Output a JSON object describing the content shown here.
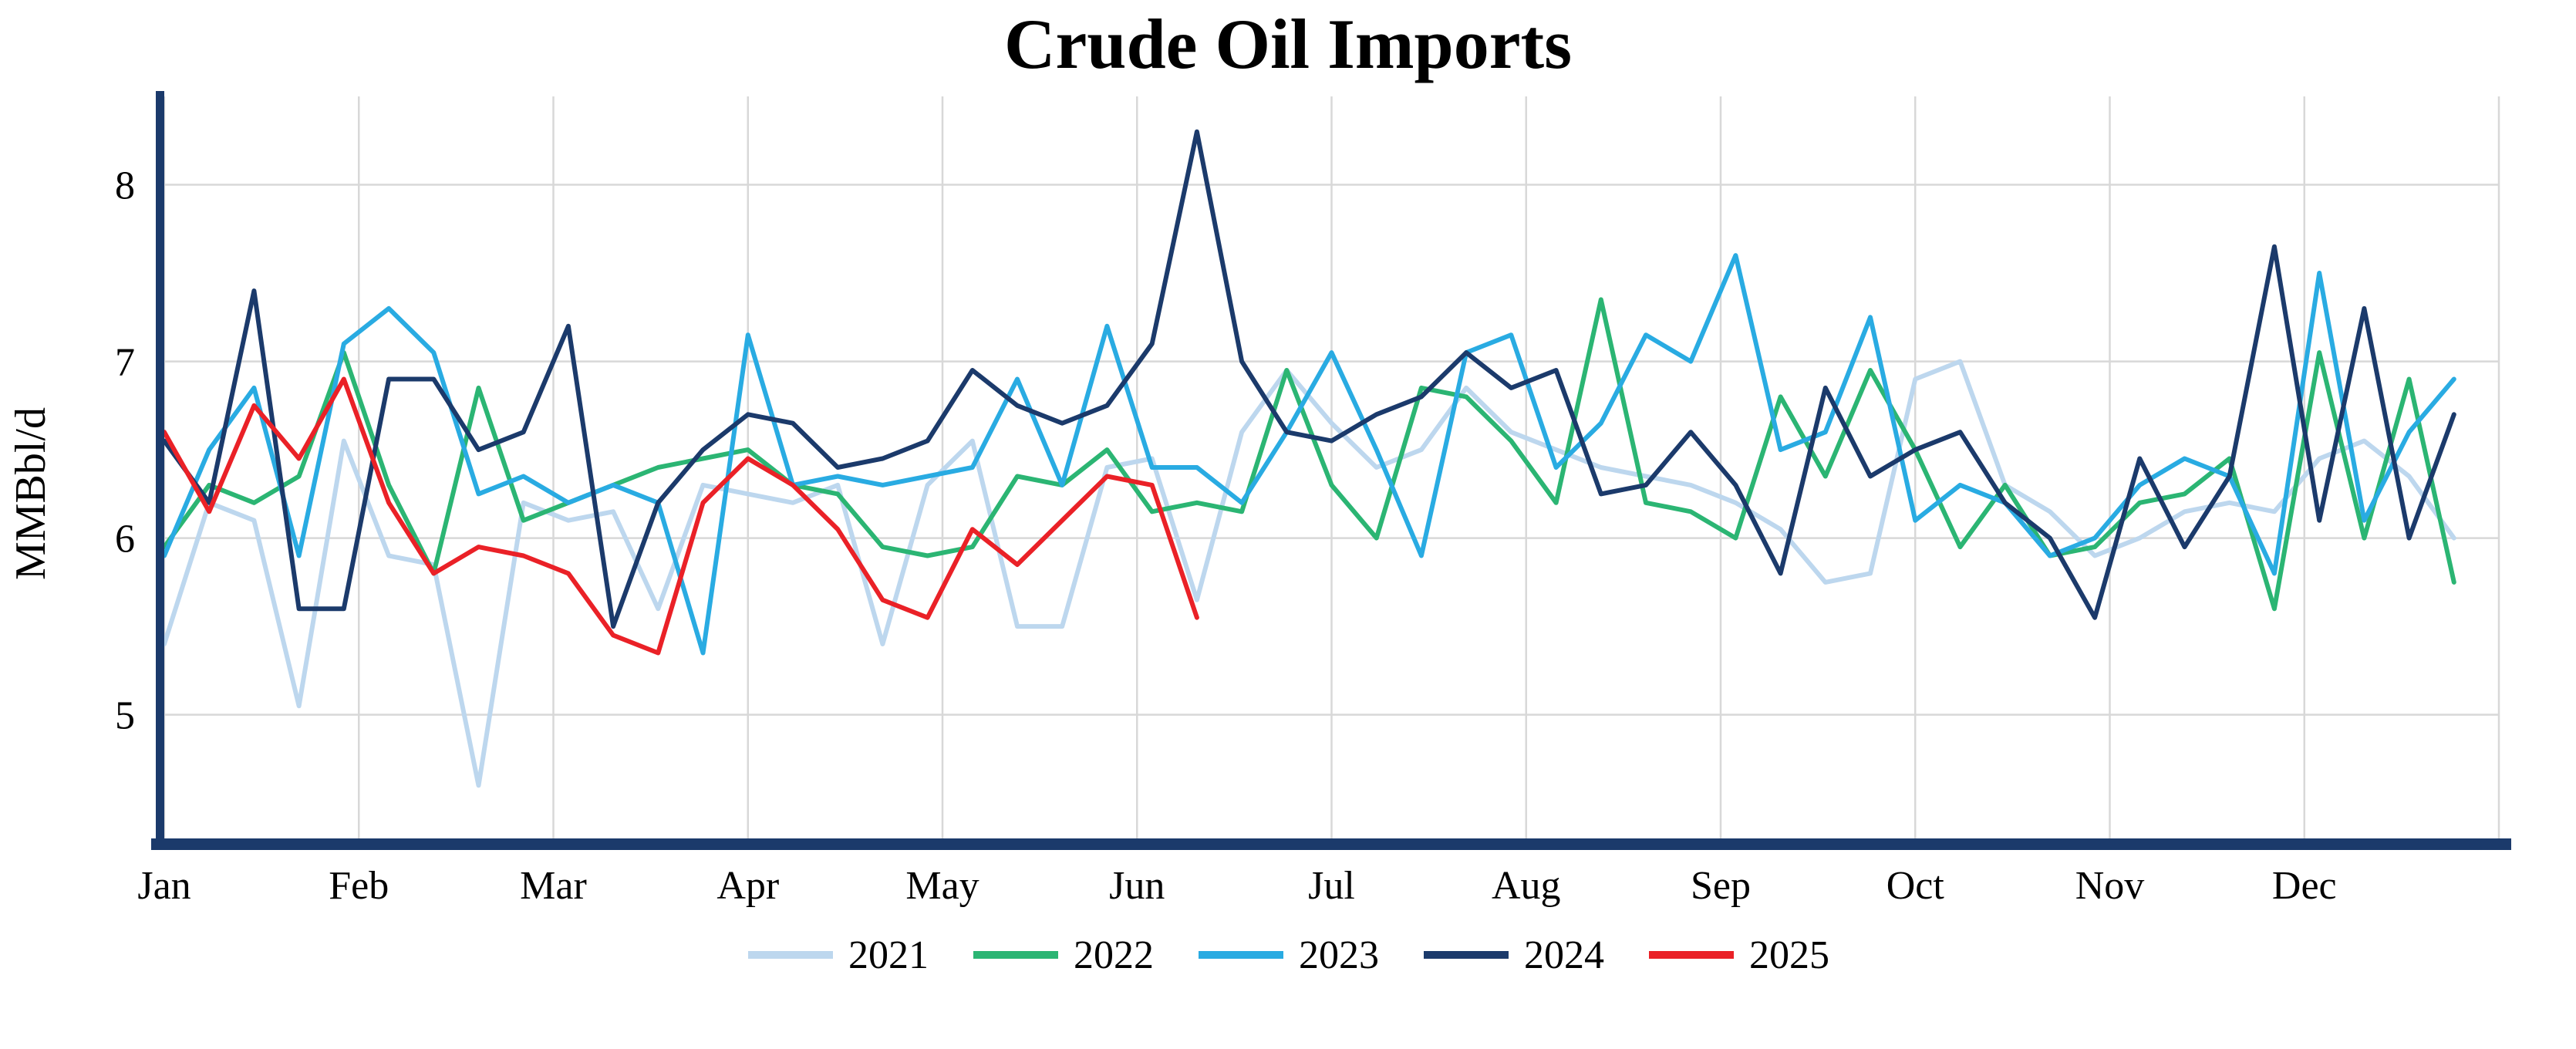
{
  "title": "Crude Oil Imports",
  "y_axis_label": "MMBbl/d",
  "colors": {
    "axis": "#1B3A6B",
    "grid": "#D8D8D8",
    "background": "#FFFFFF",
    "text": "#000000"
  },
  "chart_data": {
    "type": "line",
    "title": "Crude Oil Imports",
    "xlabel": "",
    "ylabel": "MMBbl/d",
    "x_unit": "week of year",
    "x_ticklabels": [
      "Jan",
      "Feb",
      "Mar",
      "Apr",
      "May",
      "Jun",
      "Jul",
      "Aug",
      "Sep",
      "Oct",
      "Nov",
      "Dec"
    ],
    "y_ticks": [
      5,
      6,
      7,
      8
    ],
    "ylim": [
      4.3,
      8.5
    ],
    "weeks_per_year": 52,
    "grid": true,
    "legend_position": "bottom",
    "axis_color": "#1B3A6B",
    "grid_color": "#D8D8D8",
    "series": [
      {
        "name": "2021",
        "color": "#BDD7EE",
        "values": [
          5.4,
          6.2,
          6.1,
          5.05,
          6.55,
          5.9,
          5.85,
          4.6,
          6.2,
          6.1,
          6.15,
          5.6,
          6.3,
          6.25,
          6.2,
          6.3,
          5.4,
          6.3,
          6.55,
          5.5,
          5.5,
          6.4,
          6.45,
          5.65,
          6.6,
          6.95,
          6.65,
          6.4,
          6.5,
          6.85,
          6.6,
          6.5,
          6.4,
          6.35,
          6.3,
          6.2,
          6.05,
          5.75,
          5.8,
          6.9,
          7.0,
          6.3,
          6.15,
          5.9,
          6.0,
          6.15,
          6.2,
          6.15,
          6.45,
          6.55,
          6.35,
          6.0
        ]
      },
      {
        "name": "2022",
        "color": "#2BB573",
        "values": [
          5.95,
          6.3,
          6.2,
          6.35,
          7.05,
          6.3,
          5.8,
          6.85,
          6.1,
          6.2,
          6.3,
          6.4,
          6.45,
          6.5,
          6.3,
          6.25,
          5.95,
          5.9,
          5.95,
          6.35,
          6.3,
          6.5,
          6.15,
          6.2,
          6.15,
          6.95,
          6.3,
          6.0,
          6.85,
          6.8,
          6.55,
          6.2,
          7.35,
          6.2,
          6.15,
          6.0,
          6.8,
          6.35,
          6.95,
          6.5,
          5.95,
          6.3,
          5.9,
          5.95,
          6.2,
          6.25,
          6.45,
          5.6,
          7.05,
          6.0,
          6.9,
          5.75
        ]
      },
      {
        "name": "2023",
        "color": "#29ABE2",
        "values": [
          5.9,
          6.5,
          6.85,
          5.9,
          7.1,
          7.3,
          7.05,
          6.25,
          6.35,
          6.2,
          6.3,
          6.2,
          5.35,
          7.15,
          6.3,
          6.35,
          6.3,
          6.35,
          6.4,
          6.9,
          6.3,
          7.2,
          6.4,
          6.4,
          6.2,
          6.6,
          7.05,
          6.5,
          5.9,
          7.05,
          7.15,
          6.4,
          6.65,
          7.15,
          7.0,
          7.6,
          6.5,
          6.6,
          7.25,
          6.1,
          6.3,
          6.2,
          5.9,
          6.0,
          6.3,
          6.45,
          6.35,
          5.8,
          7.5,
          6.1,
          6.6,
          6.9
        ]
      },
      {
        "name": "2024",
        "color": "#1B3A6B",
        "values": [
          6.55,
          6.2,
          7.4,
          5.6,
          5.6,
          6.9,
          6.9,
          6.5,
          6.6,
          7.2,
          5.5,
          6.2,
          6.5,
          6.7,
          6.65,
          6.4,
          6.45,
          6.55,
          6.95,
          6.75,
          6.65,
          6.75,
          7.1,
          8.3,
          7.0,
          6.6,
          6.55,
          6.7,
          6.8,
          7.05,
          6.85,
          6.95,
          6.25,
          6.3,
          6.6,
          6.3,
          5.8,
          6.85,
          6.35,
          6.5,
          6.6,
          6.2,
          6.0,
          5.55,
          6.45,
          5.95,
          6.35,
          7.65,
          6.1,
          7.3,
          6.0,
          6.7
        ]
      },
      {
        "name": "2025",
        "color": "#EA2127",
        "values": [
          6.6,
          6.15,
          6.75,
          6.45,
          6.9,
          6.2,
          5.8,
          5.95,
          5.9,
          5.8,
          5.45,
          5.35,
          6.2,
          6.45,
          6.3,
          6.05,
          5.65,
          5.55,
          6.05,
          5.85,
          6.1,
          6.35,
          6.3,
          5.55
        ]
      }
    ]
  }
}
